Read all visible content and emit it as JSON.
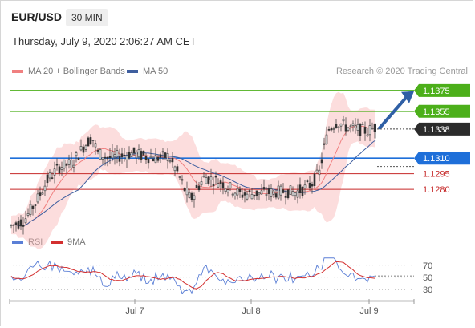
{
  "header": {
    "symbol": "EUR/USD",
    "timeframe": "30 MIN",
    "datetime": "Thursday, July 9, 2020 2:06:27 AM CET"
  },
  "legend": {
    "ma20_label": "MA 20 + Bollinger Bands",
    "ma20_color": "#f08080",
    "ma50_label": "MA 50",
    "ma50_color": "#3f5f9f"
  },
  "credit": "Research © 2020 Trading Central",
  "rsi_legend": {
    "rsi_label": "RSI",
    "rsi_color": "#5b7fd6",
    "ma_label": "9MA",
    "ma_color": "#d32f2f"
  },
  "chart_data": {
    "type": "line",
    "series_type": "candlestick",
    "x": [
      "Jul 7",
      "Jul 8",
      "Jul 9"
    ],
    "levels": [
      {
        "label": "1.1375",
        "value": 1.1375,
        "color": "#4caf1a",
        "tagged": true
      },
      {
        "label": "1.1355",
        "value": 1.1355,
        "color": "#4caf1a",
        "tagged": true
      },
      {
        "label": "1.1338",
        "value": 1.1338,
        "color": "#2b2b2b",
        "tagged": true
      },
      {
        "label": "1.1310",
        "value": 1.131,
        "color": "#1e6fd9",
        "tagged": true
      },
      {
        "label": "1.1295",
        "value": 1.1295,
        "color": "#c62828",
        "tagged": false
      },
      {
        "label": "1.1280",
        "value": 1.128,
        "color": "#c62828",
        "tagged": false
      }
    ],
    "current_price": 1.1338,
    "ylim": [
      1.124,
      1.1388
    ],
    "rsi": {
      "ticks": [
        "70",
        "50",
        "30"
      ],
      "ylim": [
        15,
        95
      ]
    }
  }
}
